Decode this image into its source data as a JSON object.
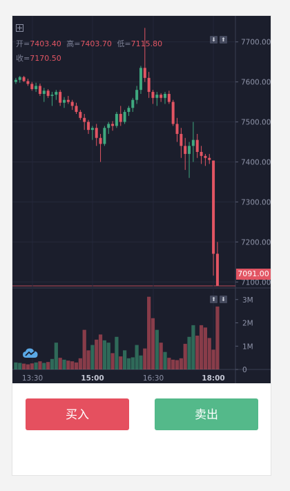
{
  "ohlc": {
    "open_label": "开=",
    "open": "7403.40",
    "high_label": "高=",
    "high": "7403.70",
    "low_label": "低=",
    "low": "7115.80",
    "close_label": "收=",
    "close": "7170.50"
  },
  "current_price": "7091.00",
  "actions": {
    "buy": "买入",
    "sell": "卖出"
  },
  "colors": {
    "up": "#3fa97f",
    "down": "#e25563",
    "background": "#1b1e2c",
    "buy": "#e5505f",
    "sell": "#54b98a"
  },
  "chart_data": [
    {
      "type": "candlestick",
      "price_axis_ticks": [
        "7100.00",
        "7200.00",
        "7300.00",
        "7400.00",
        "7500.00",
        "7600.00",
        "7700.00"
      ],
      "ylim": [
        7085,
        7765
      ],
      "time_axis_ticks": [
        "13:30",
        "15:00",
        "16:30",
        "18:00"
      ],
      "candles": [
        [
          7600,
          7610,
          7595,
          7605
        ],
        [
          7605,
          7615,
          7598,
          7612
        ],
        [
          7612,
          7615,
          7600,
          7602
        ],
        [
          7602,
          7608,
          7590,
          7595
        ],
        [
          7595,
          7600,
          7578,
          7582
        ],
        [
          7582,
          7598,
          7575,
          7590
        ],
        [
          7590,
          7596,
          7565,
          7570
        ],
        [
          7570,
          7585,
          7550,
          7578
        ],
        [
          7578,
          7582,
          7560,
          7565
        ],
        [
          7565,
          7575,
          7540,
          7568
        ],
        [
          7568,
          7580,
          7555,
          7575
        ],
        [
          7575,
          7580,
          7540,
          7548
        ],
        [
          7548,
          7562,
          7535,
          7555
        ],
        [
          7555,
          7565,
          7545,
          7550
        ],
        [
          7550,
          7555,
          7530,
          7540
        ],
        [
          7540,
          7548,
          7520,
          7525
        ],
        [
          7525,
          7530,
          7505,
          7510
        ],
        [
          7510,
          7520,
          7480,
          7500
        ],
        [
          7500,
          7505,
          7470,
          7480
        ],
        [
          7480,
          7490,
          7455,
          7485
        ],
        [
          7485,
          7495,
          7440,
          7460
        ],
        [
          7460,
          7470,
          7400,
          7445
        ],
        [
          7445,
          7490,
          7440,
          7485
        ],
        [
          7485,
          7500,
          7470,
          7495
        ],
        [
          7495,
          7502,
          7478,
          7490
        ],
        [
          7490,
          7525,
          7485,
          7520
        ],
        [
          7520,
          7540,
          7490,
          7500
        ],
        [
          7500,
          7530,
          7495,
          7525
        ],
        [
          7525,
          7540,
          7515,
          7535
        ],
        [
          7535,
          7560,
          7525,
          7555
        ],
        [
          7555,
          7590,
          7545,
          7580
        ],
        [
          7580,
          7640,
          7570,
          7635
        ],
        [
          7635,
          7735,
          7600,
          7610
        ],
        [
          7610,
          7625,
          7560,
          7575
        ],
        [
          7575,
          7580,
          7545,
          7560
        ],
        [
          7560,
          7575,
          7540,
          7568
        ],
        [
          7568,
          7572,
          7550,
          7560
        ],
        [
          7560,
          7575,
          7545,
          7570
        ],
        [
          7570,
          7578,
          7545,
          7550
        ],
        [
          7550,
          7555,
          7490,
          7495
        ],
        [
          7495,
          7510,
          7450,
          7470
        ],
        [
          7470,
          7485,
          7410,
          7440
        ],
        [
          7440,
          7460,
          7380,
          7420
        ],
        [
          7420,
          7450,
          7360,
          7440
        ],
        [
          7440,
          7500,
          7400,
          7455
        ],
        [
          7455,
          7470,
          7410,
          7425
        ],
        [
          7425,
          7440,
          7395,
          7415
        ],
        [
          7415,
          7420,
          7390,
          7410
        ],
        [
          7410,
          7420,
          7395,
          7405
        ],
        [
          7403.4,
          7403.7,
          7115.8,
          7170.5
        ],
        [
          7170.5,
          7200,
          7090,
          7091
        ]
      ],
      "volume_axis_ticks": [
        "0",
        "1M",
        "2M",
        "3M"
      ],
      "volume_ylim": [
        0,
        3200000
      ],
      "volumes": [
        300000,
        280000,
        250000,
        220000,
        260000,
        300000,
        350000,
        280000,
        320000,
        450000,
        1150000,
        500000,
        420000,
        380000,
        350000,
        300000,
        480000,
        1700000,
        820000,
        1050000,
        1280000,
        1500000,
        1250000,
        1150000,
        700000,
        1400000,
        560000,
        820000,
        480000,
        520000,
        1050000,
        600000,
        900000,
        3120000,
        2200000,
        1700000,
        1150000,
        750000,
        500000,
        420000,
        400000,
        480000,
        1100000,
        1400000,
        1900000,
        1450000,
        1900000,
        1800000,
        1350000,
        850000,
        2700000
      ]
    }
  ]
}
